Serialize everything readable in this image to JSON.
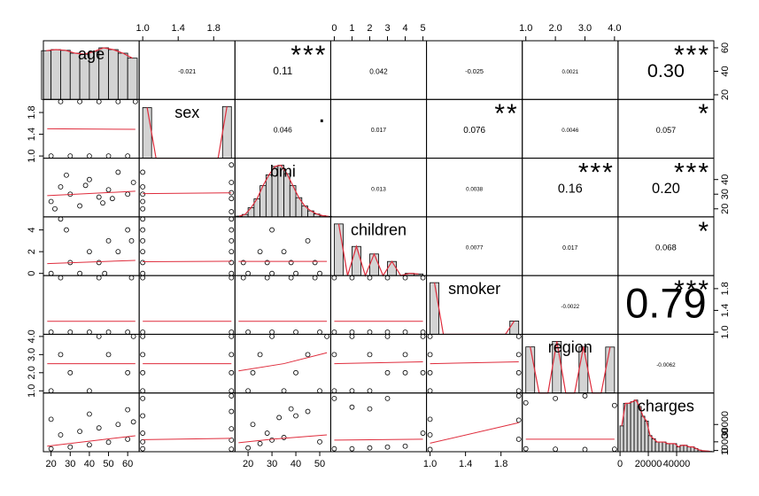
{
  "chart_data": {
    "type": "pairs",
    "bar_color": "#d3d3d3",
    "line_color": "#df2c3c",
    "star_color": "#DF536B",
    "point_color": "#000000",
    "variables": [
      {
        "name": "age",
        "lim": [
          16,
          66
        ],
        "xticks": [
          20,
          30,
          40,
          50,
          60
        ],
        "yticks": [
          20,
          40,
          60
        ],
        "bins": [
          15,
          20,
          25,
          30,
          35,
          40,
          45,
          50,
          55,
          60,
          65
        ],
        "counts": [
          137,
          140,
          138,
          130,
          127,
          135,
          145,
          140,
          130,
          116
        ]
      },
      {
        "name": "sex",
        "lim": [
          0.96,
          2.04
        ],
        "xticks": [
          {
            "value": 1,
            "label": "1.0"
          },
          1.4,
          1.8
        ],
        "yticks": [
          {
            "value": 1,
            "label": "1.0"
          },
          1.4,
          1.8
        ],
        "bins": [
          1,
          1.1,
          1.2,
          1.3,
          1.4,
          1.5,
          1.6,
          1.7,
          1.8,
          1.9,
          2
        ],
        "counts": [
          662,
          0,
          0,
          0,
          0,
          0,
          0,
          0,
          0,
          676
        ]
      },
      {
        "name": "bmi",
        "lim": [
          14.5,
          54.6
        ],
        "xticks": [
          20,
          30,
          40,
          50
        ],
        "yticks": [
          20,
          30,
          40
        ],
        "bins": [
          15,
          17.5,
          20,
          22.5,
          25,
          27.5,
          30,
          32.5,
          35,
          37.5,
          40,
          42.5,
          45,
          47.5,
          50,
          52.5,
          55
        ],
        "counts": [
          3,
          10,
          38,
          75,
          130,
          175,
          210,
          215,
          180,
          130,
          80,
          45,
          25,
          12,
          5,
          2
        ]
      },
      {
        "name": "children",
        "lim": [
          -0.2,
          5.2
        ],
        "xticks": [
          0,
          1,
          2,
          3,
          4,
          5
        ],
        "yticks": [
          0,
          2,
          4
        ],
        "bins": [
          0,
          0.5,
          1,
          1.5,
          2,
          2.5,
          3,
          3.5,
          4,
          4.5,
          5
        ],
        "counts": [
          574,
          0,
          324,
          0,
          240,
          0,
          157,
          0,
          25,
          18
        ]
      },
      {
        "name": "smoker",
        "lim": [
          0.96,
          2.04
        ],
        "xticks": [
          {
            "value": 1,
            "label": "1.0"
          },
          1.4,
          1.8
        ],
        "yticks": [
          {
            "value": 1,
            "label": "1.0"
          },
          1.4,
          1.8
        ],
        "bins": [
          1,
          1.1,
          1.2,
          1.3,
          1.4,
          1.5,
          1.6,
          1.7,
          1.8,
          1.9,
          2
        ],
        "counts": [
          1064,
          0,
          0,
          0,
          0,
          0,
          0,
          0,
          0,
          274
        ]
      },
      {
        "name": "region",
        "lim": [
          0.88,
          4.12
        ],
        "xticks": [
          {
            "value": 1,
            "label": "1.0"
          },
          {
            "value": 2,
            "label": "2.0"
          },
          {
            "value": 3,
            "label": "3.0"
          },
          {
            "value": 4,
            "label": "4.0"
          }
        ],
        "yticks": [
          {
            "value": 1,
            "label": "1.0"
          },
          {
            "value": 2,
            "label": "2.0"
          },
          {
            "value": 3,
            "label": "3.0"
          },
          {
            "value": 4,
            "label": "4.0"
          }
        ],
        "bins": [
          1,
          1.3,
          1.6,
          1.9,
          2.2,
          2.5,
          2.8,
          3.1,
          3.4,
          3.7,
          4
        ],
        "counts": [
          325,
          0,
          0,
          364,
          0,
          0,
          325,
          0,
          0,
          324
        ]
      },
      {
        "name": "charges",
        "lim": [
          -1400,
          66300
        ],
        "xticks": [
          0,
          20000,
          40000
        ],
        "yticks": [
          0,
          10000,
          30000
        ],
        "bins": [
          0,
          2500,
          5000,
          7500,
          10000,
          12500,
          15000,
          17500,
          20000,
          22500,
          25000,
          27500,
          30000,
          32500,
          35000,
          37500,
          40000,
          42500,
          45000,
          47500,
          50000,
          52500,
          55000,
          57500,
          60000,
          62500,
          65000
        ],
        "counts": [
          80,
          150,
          150,
          155,
          160,
          140,
          110,
          95,
          50,
          40,
          30,
          30,
          30,
          25,
          25,
          25,
          15,
          20,
          20,
          15,
          15,
          10,
          5,
          3,
          2,
          1
        ]
      }
    ],
    "correlations": [
      {
        "value": -0.021
      },
      {
        "value": 0.11,
        "stars": "***"
      },
      {
        "value": 0.042
      },
      {
        "value": -0.025
      },
      {
        "value": 0.0021
      },
      {
        "value": 0.3,
        "label": "0.30",
        "stars": "***"
      },
      {
        "value": 0.046,
        "stars": "."
      },
      {
        "value": 0.017
      },
      {
        "value": 0.076,
        "stars": "**"
      },
      {
        "value": 0.0046
      },
      {
        "value": 0.057,
        "stars": "*"
      },
      {
        "value": 0.013
      },
      {
        "value": 0.0038
      },
      {
        "value": 0.16,
        "stars": "***"
      },
      {
        "value": 0.2,
        "label": "0.20",
        "stars": "***"
      },
      {
        "value": 0.0077
      },
      {
        "value": 0.017
      },
      {
        "value": 0.068,
        "stars": "*"
      },
      {
        "value": -0.0022
      },
      {
        "value": 0.79,
        "stars": "***"
      },
      {
        "value": -0.0062
      }
    ],
    "panels": [
      {
        "x": [
          20,
          30,
          40,
          50,
          60,
          25,
          35,
          45,
          55,
          64
        ],
        "y": [
          1,
          1,
          1,
          1,
          1,
          2,
          2,
          2,
          2,
          2
        ],
        "fit_x": [
          18,
          64
        ],
        "fit_y": [
          1.5,
          1.49
        ]
      },
      {
        "x": [
          20,
          25,
          30,
          35,
          40,
          45,
          50,
          55,
          60,
          22,
          38,
          52,
          63,
          28,
          47
        ],
        "y": [
          25,
          35,
          30,
          22,
          40,
          28,
          33,
          45,
          30,
          20,
          36,
          27,
          38,
          43,
          24
        ],
        "fit_x": [
          18,
          64
        ],
        "fit_y": [
          29,
          32
        ]
      },
      {
        "x": [
          1,
          1,
          1,
          1,
          1,
          2,
          2,
          2,
          2,
          2
        ],
        "y": [
          20,
          25,
          30,
          35,
          45,
          18,
          27,
          31,
          38,
          50
        ],
        "fit_x": [
          1,
          2
        ],
        "fit_y": [
          30.4,
          30.9
        ]
      },
      {
        "x": [
          20,
          30,
          40,
          50,
          60,
          25,
          35,
          45,
          55,
          62,
          28,
          48
        ],
        "y": [
          0,
          1,
          2,
          3,
          4,
          5,
          0,
          1,
          2,
          3,
          4,
          0
        ],
        "fit_x": [
          18,
          64
        ],
        "fit_y": [
          0.9,
          1.2
        ]
      },
      {
        "x": [
          1,
          1,
          1,
          1,
          1,
          1,
          2,
          2,
          2,
          2,
          2,
          2
        ],
        "y": [
          0,
          1,
          2,
          3,
          4,
          5,
          0,
          1,
          2,
          3,
          4,
          5
        ],
        "fit_x": [
          1,
          2
        ],
        "fit_y": [
          1.07,
          1.12
        ]
      },
      {
        "x": [
          20,
          30,
          40,
          50,
          18,
          28,
          38,
          48,
          25,
          35,
          45,
          30
        ],
        "y": [
          0,
          0,
          0,
          0,
          1,
          1,
          1,
          1,
          2,
          2,
          3,
          4
        ],
        "fit_x": [
          16,
          53
        ],
        "fit_y": [
          1.1,
          1.1
        ]
      },
      {
        "x": [
          20,
          30,
          40,
          50,
          60,
          25,
          45,
          62
        ],
        "y": [
          1,
          1,
          1,
          1,
          1,
          2,
          2,
          2
        ],
        "fit_x": [
          18,
          64
        ],
        "fit_y": [
          1.2,
          1.2
        ]
      },
      {
        "x": [
          1,
          2,
          1,
          2
        ],
        "y": [
          1,
          1,
          2,
          2
        ],
        "fit_x": [
          1,
          2
        ],
        "fit_y": [
          1.2,
          1.2
        ]
      },
      {
        "x": [
          20,
          30,
          40,
          50,
          18,
          28,
          38,
          48
        ],
        "y": [
          1,
          1,
          1,
          1,
          2,
          2,
          2,
          2
        ],
        "fit_x": [
          16,
          53
        ],
        "fit_y": [
          1.2,
          1.2
        ]
      },
      {
        "x": [
          0,
          1,
          2,
          3,
          4,
          5,
          0,
          1,
          2,
          3,
          4,
          5
        ],
        "y": [
          1,
          1,
          1,
          1,
          1,
          1,
          2,
          2,
          2,
          2,
          2,
          2
        ],
        "fit_x": [
          0,
          5
        ],
        "fit_y": [
          1.2,
          1.2
        ]
      },
      {
        "x": [
          20,
          40,
          60,
          30,
          50,
          25,
          45,
          63
        ],
        "y": [
          1,
          1,
          2,
          2,
          3,
          3,
          4,
          4
        ],
        "fit_x": [
          18,
          64
        ],
        "fit_y": [
          2.5,
          2.5
        ]
      },
      {
        "x": [
          1,
          1,
          1,
          1,
          2,
          2,
          2,
          2
        ],
        "y": [
          1,
          2,
          3,
          4,
          1,
          2,
          3,
          4
        ],
        "fit_x": [
          1,
          2
        ],
        "fit_y": [
          2.5,
          2.5
        ]
      },
      {
        "x": [
          20,
          35,
          50,
          22,
          40,
          25,
          45,
          30,
          53
        ],
        "y": [
          1,
          1,
          1,
          2,
          2,
          3,
          3,
          4,
          4
        ],
        "fit_x": [
          16,
          35,
          53
        ],
        "fit_y": [
          2.1,
          2.5,
          3.1
        ]
      },
      {
        "x": [
          0,
          1,
          2,
          3,
          4,
          5,
          0,
          2,
          4,
          1,
          3,
          5
        ],
        "y": [
          1,
          1,
          1,
          2,
          2,
          2,
          3,
          3,
          3,
          4,
          4,
          4
        ],
        "fit_x": [
          0,
          5
        ],
        "fit_y": [
          2.5,
          2.6
        ]
      },
      {
        "x": [
          1,
          1,
          1,
          1,
          2,
          2,
          2,
          2
        ],
        "y": [
          1,
          2,
          3,
          4,
          1,
          2,
          3,
          4
        ],
        "fit_x": [
          1,
          2
        ],
        "fit_y": [
          2.5,
          2.6
        ]
      },
      {
        "x": [
          20,
          30,
          40,
          50,
          60,
          25,
          35,
          45,
          55,
          63,
          20,
          40,
          60
        ],
        "y": [
          2000,
          4000,
          6500,
          9500,
          13000,
          18000,
          22000,
          26000,
          30000,
          33000,
          36000,
          42000,
          47000
        ],
        "fit_x": [
          18,
          64
        ],
        "fit_y": [
          5000,
          17000
        ]
      },
      {
        "x": [
          1,
          1,
          1,
          1,
          1,
          2,
          2,
          2,
          2,
          2
        ],
        "y": [
          2000,
          10000,
          20000,
          40000,
          60000,
          1500,
          12000,
          25000,
          45000,
          63000
        ],
        "fit_x": [
          1,
          2
        ],
        "fit_y": [
          12500,
          14000
        ]
      },
      {
        "x": [
          20,
          25,
          30,
          35,
          40,
          45,
          50,
          28,
          33,
          38,
          22
        ],
        "y": [
          3000,
          8000,
          12000,
          15000,
          40000,
          45000,
          10000,
          20000,
          38000,
          48000,
          30000
        ],
        "fit_x": [
          16,
          30,
          53
        ],
        "fit_y": [
          9000,
          13000,
          18000
        ]
      },
      {
        "x": [
          0,
          0,
          1,
          1,
          2,
          2,
          3,
          3,
          4,
          5
        ],
        "y": [
          2000,
          60000,
          2000,
          50000,
          3000,
          48000,
          4000,
          60000,
          5000,
          20000
        ],
        "fit_x": [
          0,
          5
        ],
        "fit_y": [
          12000,
          13000
        ]
      },
      {
        "x": [
          1,
          1,
          1,
          2,
          2,
          2
        ],
        "y": [
          1200,
          18000,
          36000,
          13000,
          35000,
          63000
        ],
        "fit_x": [
          1,
          2
        ],
        "fit_y": [
          8400,
          32000
        ]
      },
      {
        "x": [
          1,
          1,
          2,
          2,
          3,
          3,
          4,
          4
        ],
        "y": [
          2000,
          55000,
          1500,
          60000,
          1200,
          63000,
          1500,
          52000
        ],
        "fit_x": [
          1,
          4
        ],
        "fit_y": [
          13000,
          13000
        ]
      }
    ]
  }
}
